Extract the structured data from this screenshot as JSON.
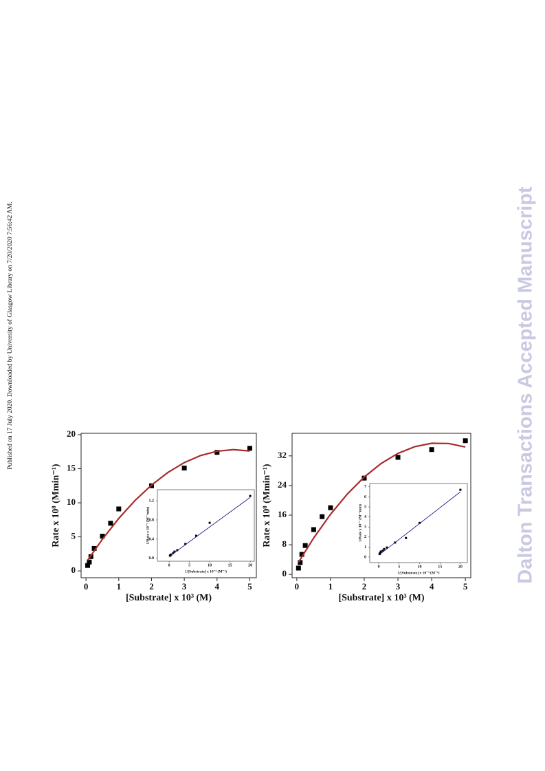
{
  "side_note": "Published on 17 July 2020. Downloaded by University of Glasgow Library on 7/20/2020 7:56:42 AM.",
  "watermark": "Dalton Transactions Accepted Manuscript",
  "chart_data": [
    {
      "type": "scatter",
      "x_label": "[Substrate] x 10³ (M)",
      "y_label": "Rate x 10⁸ (Mmin⁻¹)",
      "xlim": [
        -0.15,
        5.2
      ],
      "ylim": [
        -1,
        20.2
      ],
      "xticks": [
        0,
        1,
        2,
        3,
        4,
        5
      ],
      "yticks": [
        0,
        5,
        10,
        15,
        20
      ],
      "series": [
        {
          "type": "scatter",
          "color": "#000000",
          "x": [
            0.05,
            0.1,
            0.15,
            0.25,
            0.5,
            0.75,
            1,
            2,
            3,
            4,
            5
          ],
          "values": [
            0.8,
            1.3,
            2.1,
            3.3,
            5.1,
            7.0,
            9.1,
            12.5,
            15.1,
            17.4,
            18.0
          ]
        },
        {
          "type": "line",
          "color": "#a82a2a",
          "x": [
            0.05,
            0.5,
            1,
            1.5,
            2,
            2.5,
            3,
            3.5,
            4,
            4.5,
            5
          ],
          "values": [
            1.56,
            4.65,
            7.71,
            10.36,
            12.6,
            14.45,
            15.9,
            16.94,
            17.57,
            17.8,
            17.6
          ]
        }
      ]
    },
    {
      "type": "scatter",
      "x_label": "1/[Substrate] x 10⁻³ (M⁻¹)",
      "y_label": "1/Rate x 10⁻⁷ (M⁻¹min)",
      "xlim": [
        -2.9,
        21
      ],
      "ylim": [
        -0.06,
        1.43
      ],
      "xticks": [
        0,
        5,
        10,
        15,
        20
      ],
      "yticks": [
        {
          "value": 0,
          "label": "0.0"
        },
        0.4,
        0.8,
        1.2
      ],
      "series": [
        {
          "type": "scatter",
          "color": "#000000",
          "x": [
            0.2,
            0.25,
            0.33,
            0.5,
            1,
            1.33,
            2,
            4,
            6.67,
            10,
            20
          ],
          "values": [
            0.056,
            0.057,
            0.066,
            0.08,
            0.11,
            0.14,
            0.17,
            0.3,
            0.47,
            0.74,
            1.3
          ]
        },
        {
          "type": "line",
          "color": "#1a1a8c",
          "x": [
            0.2,
            20
          ],
          "values": [
            0.05,
            1.27
          ]
        }
      ]
    },
    {
      "type": "scatter",
      "x_label": "[Substrate] x 10³ (M)",
      "y_label": "Rate x 10⁸ (Mmin⁻¹)",
      "xlim": [
        -0.14,
        5.16
      ],
      "ylim": [
        -0.9,
        38.1
      ],
      "xticks": [
        0,
        1,
        2,
        3,
        4,
        5
      ],
      "yticks": [
        0,
        8,
        16,
        24,
        32
      ],
      "series": [
        {
          "type": "scatter",
          "color": "#000000",
          "x": [
            0.05,
            0.1,
            0.15,
            0.25,
            0.5,
            0.75,
            1,
            2,
            3,
            4,
            5
          ],
          "values": [
            1.7,
            3.2,
            5.4,
            7.8,
            12.1,
            15.6,
            18.0,
            26.0,
            31.6,
            33.7,
            36.1
          ]
        },
        {
          "type": "line",
          "color": "#a82a2a",
          "x": [
            0.05,
            0.5,
            1,
            1.5,
            2,
            2.5,
            3,
            3.5,
            4,
            4.5,
            5
          ],
          "values": [
            3.27,
            9.83,
            16.23,
            21.72,
            26.29,
            29.95,
            32.68,
            34.49,
            35.4,
            35.35,
            34.4
          ]
        }
      ]
    },
    {
      "type": "scatter",
      "x_label": "1/[Substrate] x 10⁻³ (M⁻¹)",
      "y_label": "1/Rate x 10⁻⁷ (M⁻¹min)",
      "xlim": [
        -2.2,
        21.7
      ],
      "ylim": [
        -0.55,
        7.33
      ],
      "xticks": [
        0,
        5,
        10,
        15,
        20
      ],
      "yticks": [
        0,
        1,
        2,
        3,
        4,
        5,
        6,
        7
      ],
      "series": [
        {
          "type": "scatter",
          "color": "#000000",
          "x": [
            0.2,
            0.25,
            0.33,
            0.5,
            1,
            1.33,
            2,
            4,
            6.67,
            10,
            20
          ],
          "values": [
            0.3,
            0.35,
            0.4,
            0.55,
            0.65,
            0.8,
            0.95,
            1.45,
            1.9,
            3.4,
            6.7
          ]
        },
        {
          "type": "line",
          "color": "#1a1a8c",
          "x": [
            0.2,
            20
          ],
          "values": [
            0.25,
            6.5
          ]
        }
      ]
    }
  ]
}
